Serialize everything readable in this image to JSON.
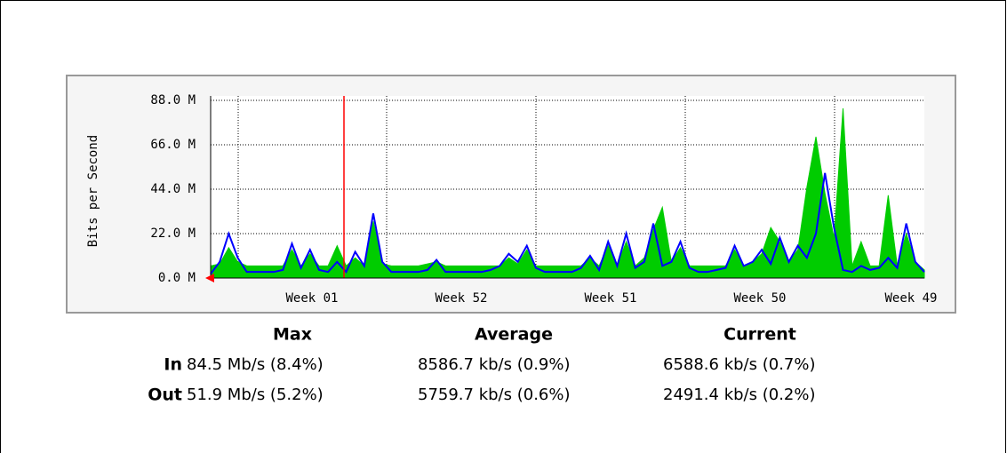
{
  "chart_data": {
    "type": "area-line",
    "y_label": "Bits per Second",
    "ylim": [
      0,
      88
    ],
    "yticks": [
      {
        "value": 0,
        "label": "0.0 M"
      },
      {
        "value": 22,
        "label": "22.0 M"
      },
      {
        "value": 44,
        "label": "44.0 M"
      },
      {
        "value": 66,
        "label": "66.0 M"
      },
      {
        "value": 88,
        "label": "88.0 M"
      }
    ],
    "xlabels": [
      "Week 01",
      "Week 52",
      "Week 51",
      "Week 50",
      "Week 49"
    ],
    "grid": true,
    "series": [
      {
        "name": "In",
        "color": "#00cc00",
        "style": "area",
        "values": [
          6,
          7,
          15,
          8,
          6,
          6,
          6,
          6,
          6,
          14,
          6,
          12,
          6,
          6,
          16,
          6,
          10,
          6,
          28,
          7,
          6,
          6,
          6,
          6,
          7,
          8,
          6,
          6,
          6,
          6,
          6,
          6,
          6,
          10,
          7,
          14,
          6,
          6,
          6,
          6,
          6,
          6,
          10,
          6,
          16,
          6,
          18,
          6,
          10,
          24,
          35,
          8,
          15,
          6,
          6,
          6,
          6,
          6,
          14,
          6,
          8,
          12,
          25,
          18,
          8,
          14,
          45,
          70,
          42,
          20,
          84,
          6,
          18,
          6,
          6,
          41,
          6,
          22,
          8,
          4
        ]
      },
      {
        "name": "Out",
        "color": "#0000ff",
        "style": "line",
        "values": [
          2,
          8,
          22,
          10,
          3,
          3,
          3,
          3,
          4,
          17,
          5,
          14,
          4,
          3,
          8,
          3,
          13,
          6,
          32,
          8,
          3,
          3,
          3,
          3,
          4,
          9,
          3,
          3,
          3,
          3,
          3,
          4,
          6,
          12,
          8,
          16,
          5,
          3,
          3,
          3,
          3,
          5,
          11,
          4,
          18,
          6,
          22,
          5,
          8,
          27,
          6,
          8,
          18,
          5,
          3,
          3,
          4,
          5,
          16,
          6,
          8,
          14,
          7,
          20,
          8,
          16,
          10,
          22,
          52,
          25,
          4,
          3,
          6,
          4,
          5,
          10,
          5,
          27,
          8,
          3
        ]
      }
    ]
  },
  "table": {
    "columns": [
      "Max",
      "Average",
      "Current"
    ],
    "rows": [
      {
        "label": "In",
        "cells": [
          "84.5 Mb/s (8.4%)",
          "8586.7 kb/s (0.9%)",
          "6588.6 kb/s (0.7%)"
        ]
      },
      {
        "label": "Out",
        "cells": [
          "51.9 Mb/s (5.2%)",
          "5759.7 kb/s (0.6%)",
          "2491.4 kb/s (0.2%)"
        ]
      }
    ]
  }
}
